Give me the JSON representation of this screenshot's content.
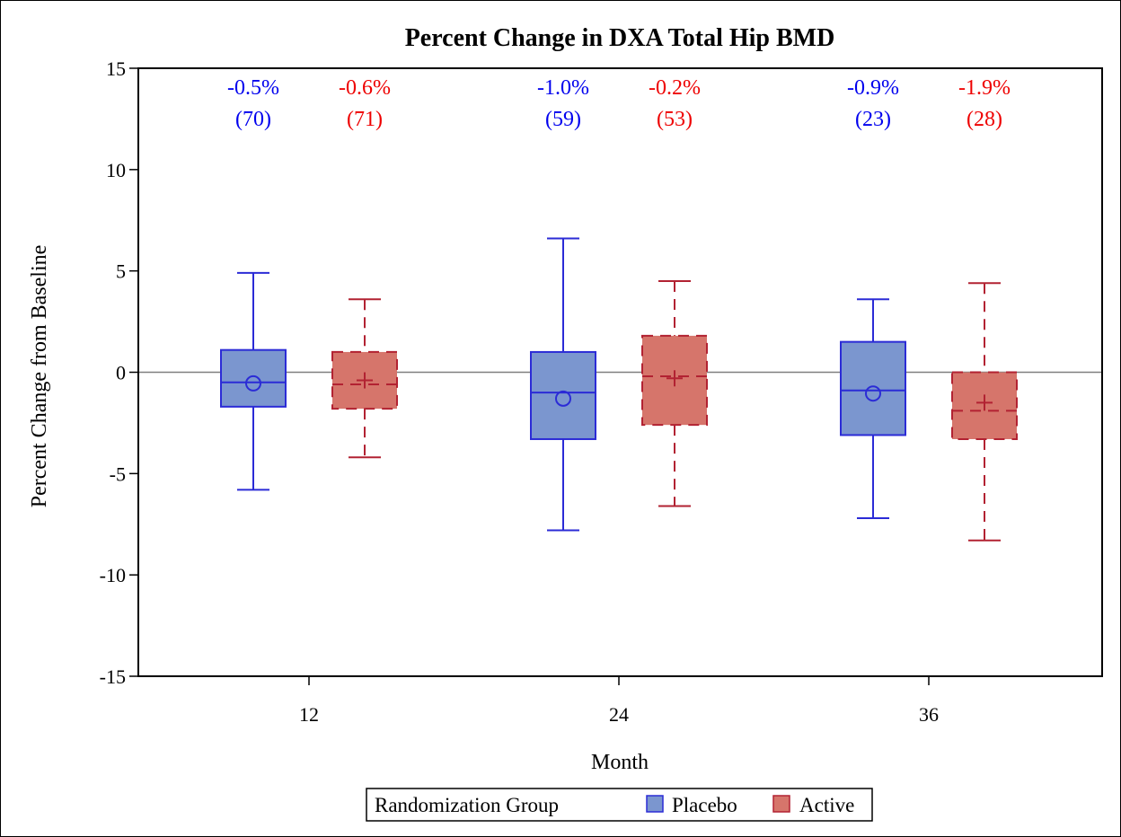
{
  "chart_data": {
    "type": "boxplot",
    "title": "Percent Change in DXA Total Hip BMD",
    "xlabel": "Month",
    "ylabel": "Percent Change from Baseline",
    "categories": [
      "12",
      "24",
      "36"
    ],
    "ylim": [
      -15,
      15
    ],
    "yticks": [
      15,
      10,
      5,
      0,
      -5,
      -10,
      -15
    ],
    "reference_line_y": 0,
    "grid": false,
    "legend": {
      "title": "Randomization Group",
      "placement": "bottom"
    },
    "series": [
      {
        "name": "Placebo",
        "fill": "#7b96cf",
        "stroke": "#2b2bd6",
        "label_color": "#0000ee",
        "mean_marker": "circle",
        "line_style": "solid",
        "annotations": [
          {
            "pct": "-0.5%",
            "n": "(70)"
          },
          {
            "pct": "-1.0%",
            "n": "(59)"
          },
          {
            "pct": "-0.9%",
            "n": "(23)"
          }
        ],
        "boxes": [
          {
            "whisker_low": -5.8,
            "q1": -1.7,
            "median": -0.5,
            "q3": 1.1,
            "whisker_high": 4.9,
            "mean": -0.55
          },
          {
            "whisker_low": -7.8,
            "q1": -3.3,
            "median": -1.0,
            "q3": 1.0,
            "whisker_high": 6.6,
            "mean": -1.3
          },
          {
            "whisker_low": -7.2,
            "q1": -3.1,
            "median": -0.9,
            "q3": 1.5,
            "whisker_high": 3.6,
            "mean": -1.05
          }
        ]
      },
      {
        "name": "Active",
        "fill": "#d6756b",
        "stroke": "#b22232",
        "label_color": "#ee0000",
        "mean_marker": "plus",
        "line_style": "dashed",
        "annotations": [
          {
            "pct": "-0.6%",
            "n": "(71)"
          },
          {
            "pct": "-0.2%",
            "n": "(53)"
          },
          {
            "pct": "-1.9%",
            "n": "(28)"
          }
        ],
        "boxes": [
          {
            "whisker_low": -4.2,
            "q1": -1.8,
            "median": -0.6,
            "q3": 1.0,
            "whisker_high": 3.6,
            "mean": -0.4
          },
          {
            "whisker_low": -6.6,
            "q1": -2.6,
            "median": -0.2,
            "q3": 1.8,
            "whisker_high": 4.5,
            "mean": -0.3
          },
          {
            "whisker_low": -8.3,
            "q1": -3.3,
            "median": -1.9,
            "q3": 0.0,
            "whisker_high": 4.4,
            "mean": -1.5
          }
        ]
      }
    ]
  }
}
